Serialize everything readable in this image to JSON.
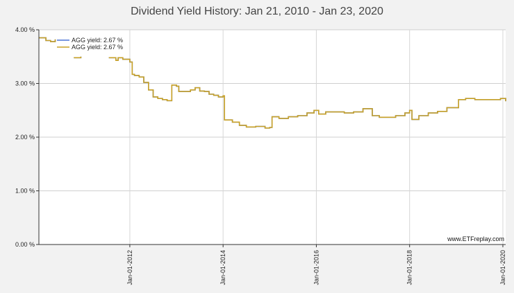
{
  "chart_data": {
    "type": "line",
    "title": "Dividend Yield History: Jan 21, 2010 - Jan 23, 2020",
    "xlabel": "",
    "ylabel": "",
    "x_range": [
      2010.05,
      2020.06
    ],
    "ylim": [
      0,
      4
    ],
    "y_ticks": [
      {
        "value": 0,
        "label": "0.00 %"
      },
      {
        "value": 1,
        "label": "1.00 %"
      },
      {
        "value": 2,
        "label": "2.00 %"
      },
      {
        "value": 3,
        "label": "3.00 %"
      },
      {
        "value": 4,
        "label": "4.00 %"
      }
    ],
    "x_ticks": [
      {
        "value": 2012.0,
        "label": "Jan-01-2012"
      },
      {
        "value": 2014.0,
        "label": "Jan-01-2014"
      },
      {
        "value": 2016.0,
        "label": "Jan-01-2016"
      },
      {
        "value": 2018.0,
        "label": "Jan-01-2018"
      },
      {
        "value": 2020.0,
        "label": "Jan-01-2020"
      }
    ],
    "grid": true,
    "legend_position": "top-left",
    "series": [
      {
        "name": "AGG yield: 2.67 %",
        "color": "#4a74d6",
        "segments": [
          {
            "x": [
              2010.05,
              2010.2,
              2010.3,
              2010.4
            ],
            "y": [
              3.85,
              3.8,
              3.78,
              3.82
            ]
          },
          {
            "x": [
              2010.8,
              2010.95
            ],
            "y": [
              3.48,
              3.5
            ]
          },
          {
            "x": [
              2011.55,
              2011.7,
              2011.75,
              2011.85,
              2012.0,
              2012.05,
              2012.1,
              2012.2,
              2012.3,
              2012.4,
              2012.5,
              2012.6,
              2012.7,
              2012.8,
              2012.9,
              2013.0,
              2013.05,
              2013.2,
              2013.3,
              2013.4,
              2013.5,
              2013.6,
              2013.7,
              2013.8,
              2013.9,
              2014.0,
              2014.03,
              2014.2,
              2014.35,
              2014.5,
              2014.7,
              2014.9,
              2015.0,
              2015.05,
              2015.2,
              2015.4,
              2015.6,
              2015.8,
              2015.95,
              2016.05,
              2016.2,
              2016.4,
              2016.6,
              2016.8,
              2017.0,
              2017.2,
              2017.35,
              2017.5,
              2017.7,
              2017.9,
              2018.0,
              2018.05,
              2018.2,
              2018.4,
              2018.6,
              2018.8,
              2019.0,
              2019.05,
              2019.2,
              2019.4,
              2019.6,
              2019.8,
              2019.95,
              2020.06
            ],
            "y": [
              3.48,
              3.43,
              3.48,
              3.45,
              3.4,
              3.17,
              3.15,
              3.12,
              3.02,
              2.88,
              2.75,
              2.72,
              2.7,
              2.68,
              2.97,
              2.95,
              2.85,
              2.85,
              2.88,
              2.92,
              2.86,
              2.85,
              2.8,
              2.78,
              2.75,
              2.77,
              2.32,
              2.28,
              2.22,
              2.19,
              2.2,
              2.17,
              2.18,
              2.38,
              2.35,
              2.38,
              2.4,
              2.45,
              2.5,
              2.43,
              2.47,
              2.47,
              2.45,
              2.47,
              2.53,
              2.4,
              2.37,
              2.37,
              2.4,
              2.45,
              2.5,
              2.33,
              2.4,
              2.45,
              2.48,
              2.55,
              2.55,
              2.7,
              2.72,
              2.7,
              2.7,
              2.7,
              2.72,
              2.67
            ]
          }
        ]
      },
      {
        "name": "AGG yield: 2.67 %",
        "color": "#c9a227",
        "segments": [
          {
            "x": [
              2010.05,
              2010.2,
              2010.3,
              2010.4
            ],
            "y": [
              3.85,
              3.8,
              3.78,
              3.82
            ]
          },
          {
            "x": [
              2010.8,
              2010.95
            ],
            "y": [
              3.48,
              3.5
            ]
          },
          {
            "x": [
              2011.55,
              2011.7,
              2011.75,
              2011.85,
              2012.0,
              2012.05,
              2012.1,
              2012.2,
              2012.3,
              2012.4,
              2012.5,
              2012.6,
              2012.7,
              2012.8,
              2012.9,
              2013.0,
              2013.05,
              2013.2,
              2013.3,
              2013.4,
              2013.5,
              2013.6,
              2013.7,
              2013.8,
              2013.9,
              2014.0,
              2014.03,
              2014.2,
              2014.35,
              2014.5,
              2014.7,
              2014.9,
              2015.0,
              2015.05,
              2015.2,
              2015.4,
              2015.6,
              2015.8,
              2015.95,
              2016.05,
              2016.2,
              2016.4,
              2016.6,
              2016.8,
              2017.0,
              2017.2,
              2017.35,
              2017.5,
              2017.7,
              2017.9,
              2018.0,
              2018.05,
              2018.2,
              2018.4,
              2018.6,
              2018.8,
              2019.0,
              2019.05,
              2019.2,
              2019.4,
              2019.6,
              2019.8,
              2019.95,
              2020.06
            ],
            "y": [
              3.48,
              3.43,
              3.48,
              3.45,
              3.4,
              3.17,
              3.15,
              3.12,
              3.02,
              2.88,
              2.75,
              2.72,
              2.7,
              2.68,
              2.97,
              2.95,
              2.85,
              2.85,
              2.88,
              2.92,
              2.86,
              2.85,
              2.8,
              2.78,
              2.75,
              2.77,
              2.32,
              2.28,
              2.22,
              2.19,
              2.2,
              2.17,
              2.18,
              2.38,
              2.35,
              2.38,
              2.4,
              2.45,
              2.5,
              2.43,
              2.47,
              2.47,
              2.45,
              2.47,
              2.53,
              2.4,
              2.37,
              2.37,
              2.4,
              2.45,
              2.5,
              2.33,
              2.4,
              2.45,
              2.48,
              2.55,
              2.55,
              2.7,
              2.72,
              2.7,
              2.7,
              2.7,
              2.72,
              2.67
            ]
          }
        ]
      }
    ],
    "watermark": "www.ETFreplay.com"
  }
}
